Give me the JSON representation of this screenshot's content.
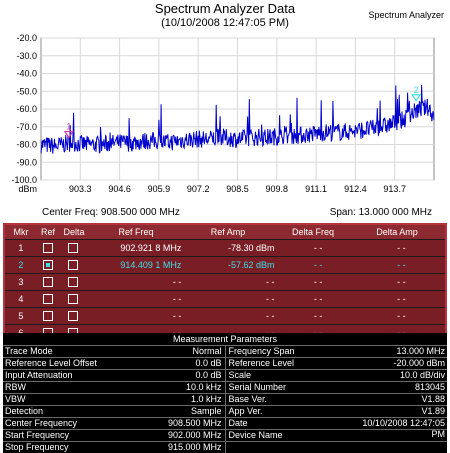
{
  "window": {
    "title": "Spectrum Analyzer Data",
    "timestamp": "(10/10/2008 12:47:05 PM)",
    "brand": "Spectrum Analyzer"
  },
  "chart_data": {
    "type": "line",
    "title": "Spectrum Analyzer Data",
    "subtitle": "(10/10/2008 12:47:05 PM)",
    "xlabel": "",
    "ylabel": "dBm",
    "xlim": [
      902.0,
      915.0
    ],
    "ylim": [
      -100.0,
      -20.0
    ],
    "x_ticks": [
      "903.3",
      "904.6",
      "905.9",
      "907.2",
      "908.5",
      "909.8",
      "911.1",
      "912.4",
      "913.7"
    ],
    "y_ticks": [
      "-20.0",
      "-30.0",
      "-40.0",
      "-50.0",
      "-60.0",
      "-70.0",
      "-80.0",
      "-90.0",
      "-100.0"
    ],
    "grid": true,
    "trace_color": "#0000cc",
    "series": [
      {
        "x": [
          902.0,
          902.5,
          903.0,
          903.5,
          904.0,
          904.5,
          905.0,
          905.5,
          905.9,
          906.2,
          906.5,
          907.0,
          907.5,
          908.0,
          908.5,
          909.0,
          909.5,
          910.0,
          910.5,
          911.0,
          911.5,
          912.0,
          912.5,
          913.0,
          913.5,
          914.0,
          914.4,
          914.8,
          915.0
        ],
        "values": [
          -80,
          -81,
          -79,
          -80,
          -80,
          -79,
          -79,
          -78,
          -78,
          -79,
          -78,
          -77,
          -77,
          -76,
          -77,
          -76,
          -76,
          -75,
          -75,
          -74,
          -73,
          -73,
          -72,
          -71,
          -69,
          -66,
          -61,
          -59,
          -64
        ]
      }
    ],
    "markers": [
      {
        "label": "1",
        "x": 902.9218,
        "y": -78.3,
        "color": "#cc44aa"
      },
      {
        "label": "2",
        "x": 914.4091,
        "y": -57.62,
        "color": "#3de0e8"
      }
    ],
    "center_freq": "Center Freq: 908.500 000 MHz",
    "span": "Span: 13.000 000 MHz"
  },
  "marker_table": {
    "headers": [
      "Mkr",
      "Ref",
      "Delta",
      "Ref Freq",
      "Ref Amp",
      "Delta Freq",
      "Delta Amp"
    ],
    "rows": [
      {
        "mkr": "1",
        "ref_checked": false,
        "delta_checked": false,
        "ref_freq": "902.921 8 MHz",
        "ref_amp": "-78.30 dBm",
        "delta_freq": "- -",
        "delta_amp": "- -"
      },
      {
        "mkr": "2",
        "ref_checked": true,
        "delta_checked": false,
        "ref_freq": "914.409 1 MHz",
        "ref_amp": "-57.62 dBm",
        "delta_freq": "- -",
        "delta_amp": "- -"
      },
      {
        "mkr": "3",
        "ref_checked": false,
        "delta_checked": false,
        "ref_freq": "- -",
        "ref_amp": "- -",
        "delta_freq": "- -",
        "delta_amp": "- -"
      },
      {
        "mkr": "4",
        "ref_checked": false,
        "delta_checked": false,
        "ref_freq": "- -",
        "ref_amp": "- -",
        "delta_freq": "- -",
        "delta_amp": "- -"
      },
      {
        "mkr": "5",
        "ref_checked": false,
        "delta_checked": false,
        "ref_freq": "- -",
        "ref_amp": "- -",
        "delta_freq": "- -",
        "delta_amp": "- -"
      },
      {
        "mkr": "6",
        "ref_checked": false,
        "delta_checked": false,
        "ref_freq": "- -",
        "ref_amp": "- -",
        "delta_freq": "- -",
        "delta_amp": "- -"
      }
    ]
  },
  "measurement": {
    "title": "Measurement Parameters",
    "rows": [
      [
        "Trace Mode",
        "Normal",
        "Frequency Span",
        "13.000 MHz"
      ],
      [
        "Reference Level Offset",
        "0.0 dB",
        "Reference Level",
        "-20.000  dBm"
      ],
      [
        "Input Attenuation",
        "0.0 dB",
        "Scale",
        "10.0  dB/div"
      ],
      [
        "RBW",
        "10.0 kHz",
        "Serial Number",
        "813045"
      ],
      [
        "VBW",
        "1.0 kHz",
        "Base Ver.",
        "V1.88"
      ],
      [
        "Detection",
        "Sample",
        "App Ver.",
        "V1.89"
      ],
      [
        "Center Frequency",
        "908.500 MHz",
        "Date",
        "10/10/2008 12:47:05 PM"
      ],
      [
        "Start Frequency",
        "902.000 MHz",
        "Device Name",
        ""
      ],
      [
        "Stop Frequency",
        "915.000 MHz",
        "",
        ""
      ]
    ]
  }
}
